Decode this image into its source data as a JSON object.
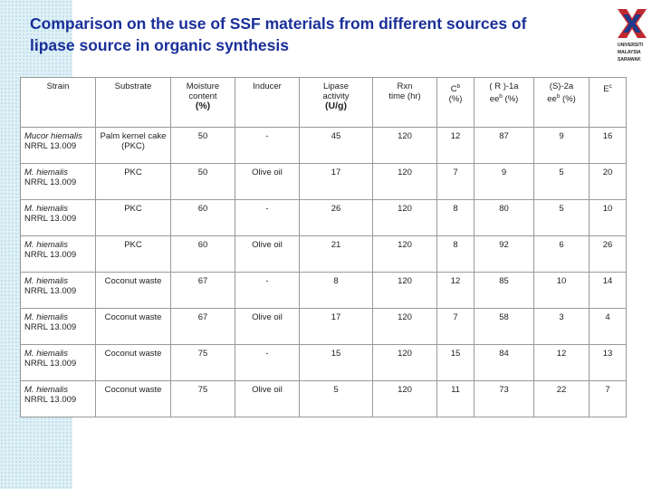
{
  "header": {
    "title": "Comparison on the use of SSF materials from different sources of  lipase  source in organic synthesis",
    "logo_lines": [
      "UNIVERSITI",
      "MALAYSIA",
      "SARAWAK"
    ]
  },
  "table": {
    "headers": [
      {
        "lines": [
          {
            "text": "Strain"
          }
        ]
      },
      {
        "lines": [
          {
            "text": "Substrate"
          }
        ]
      },
      {
        "lines": [
          {
            "text": "Moisture"
          },
          {
            "text": "content"
          },
          {
            "text": "(%)"
          }
        ]
      },
      {
        "lines": [
          {
            "text": "Inducer"
          }
        ]
      },
      {
        "lines": [
          {
            "text": "Lipase"
          },
          {
            "text": "activity"
          },
          {
            "text": "(U/g)"
          }
        ]
      },
      {
        "lines": [
          {
            "text": "Rxn"
          },
          {
            "text": "time (hr)"
          }
        ]
      },
      {
        "lines": [
          {
            "text": "C",
            "sup": "b"
          },
          {
            "text": "(%)"
          }
        ]
      },
      {
        "lines": [
          {
            "text": "( R )-1a"
          },
          {
            "text": "ee",
            "sup": "b",
            "after": " (%)"
          }
        ]
      },
      {
        "lines": [
          {
            "text": "(S)-2a"
          },
          {
            "text": "ee",
            "sup": "b",
            "after": " (%)"
          }
        ]
      },
      {
        "lines": [
          {
            "text": "E",
            "sup": "c"
          }
        ]
      }
    ],
    "rows": [
      [
        [
          "Mucor hiemalis",
          "NRRL 13.009"
        ],
        "Palm kernel cake (PKC)",
        50,
        "-",
        45,
        120,
        12,
        87,
        9,
        16
      ],
      [
        [
          "M. hiemalis",
          "NRRL 13.009"
        ],
        "PKC",
        50,
        "Olive oil",
        17,
        120,
        7,
        9,
        5,
        20
      ],
      [
        [
          "M. hiemalis",
          "NRRL 13.009"
        ],
        "PKC",
        60,
        "-",
        26,
        120,
        8,
        80,
        5,
        10
      ],
      [
        [
          "M. hiemalis",
          "NRRL 13.009"
        ],
        "PKC",
        60,
        "Olive oil",
        21,
        120,
        8,
        92,
        6,
        26
      ],
      [
        [
          "M. hiemalis",
          "NRRL 13.009"
        ],
        "Coconut waste",
        67,
        "-",
        8,
        120,
        12,
        85,
        10,
        14
      ],
      [
        [
          "M. hiemalis",
          "NRRL 13.009"
        ],
        "Coconut waste",
        67,
        "Olive oil",
        17,
        120,
        7,
        58,
        3,
        4
      ],
      [
        [
          "M. hiemalis",
          "NRRL 13.009"
        ],
        "Coconut waste",
        75,
        "-",
        15,
        120,
        15,
        84,
        12,
        13
      ],
      [
        [
          "M. hiemalis",
          "NRRL 13.009"
        ],
        "Coconut waste",
        75,
        "Olive oil",
        5,
        120,
        11,
        73,
        22,
        7
      ]
    ]
  }
}
